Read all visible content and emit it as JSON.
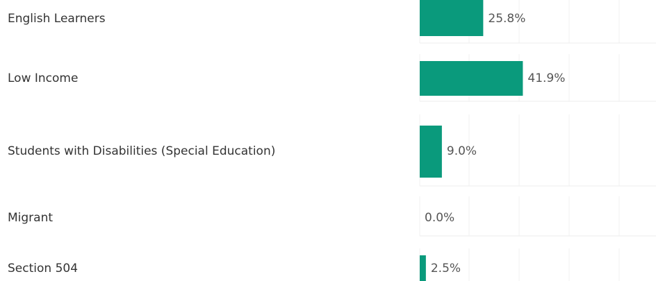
{
  "chart_data": {
    "type": "bar",
    "orientation": "horizontal",
    "categories": [
      "English Learners",
      "Low Income",
      "Students with Disabilities (Special Education)",
      "Migrant",
      "Section 504"
    ],
    "values": [
      25.8,
      41.9,
      9.0,
      0.0,
      2.5
    ],
    "value_labels": [
      "25.8%",
      "41.9%",
      "9.0%",
      "0.0%",
      "2.5%"
    ],
    "color": "#0a9a7c",
    "xlim": [
      0,
      96
    ]
  }
}
